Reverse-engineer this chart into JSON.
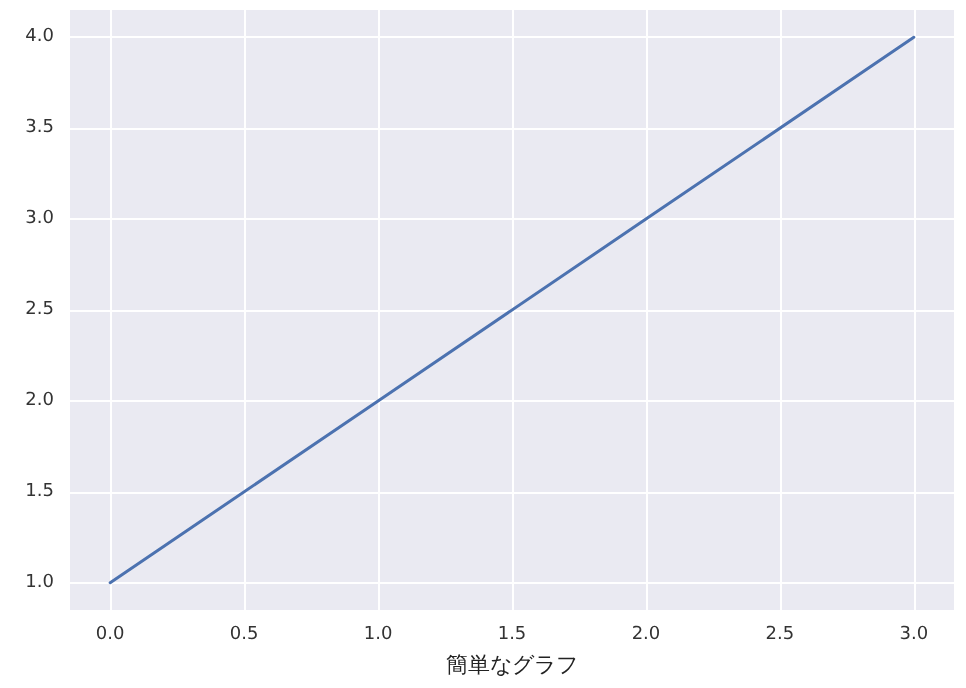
{
  "chart_data": {
    "type": "line",
    "xlabel": "簡単なグラフ",
    "x": [
      0,
      1,
      2,
      3
    ],
    "series": [
      {
        "color": "#4c72b0",
        "values": [
          1,
          2,
          3,
          4
        ]
      }
    ],
    "xlim": [
      -0.15,
      3.15
    ],
    "xticks": [
      {
        "value": 0,
        "label": "0.0"
      },
      0.5,
      {
        "value": 1,
        "label": "1.0"
      },
      1.5,
      {
        "value": 2,
        "label": "2.0"
      },
      2.5,
      {
        "value": 3,
        "label": "3.0"
      }
    ],
    "ylim": [
      0.85,
      4.15
    ],
    "yticks": [
      {
        "value": 1,
        "label": "1.0"
      },
      1.5,
      {
        "value": 2,
        "label": "2.0"
      },
      2.5,
      {
        "value": 3,
        "label": "3.0"
      },
      3.5,
      {
        "value": 4,
        "label": "4.0"
      }
    ],
    "grid": true,
    "marker": "none",
    "line_style": "solid"
  }
}
